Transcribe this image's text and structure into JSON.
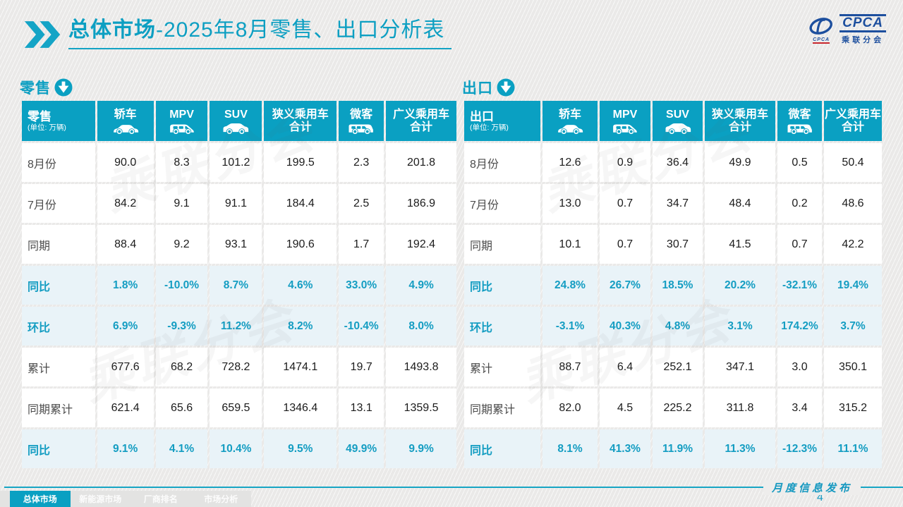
{
  "title": {
    "emphasis": "总体市场",
    "rest": "-2025年8月零售、出口分析表"
  },
  "logo": {
    "brand": "CPCA",
    "brand_cn": "乘联分会",
    "swoosh_sub": "CPCA"
  },
  "watermark": "乘联分会",
  "colors": {
    "accent": "#0aa0c2",
    "accent_text": "#149dc2",
    "highlight_bg": "#e9f3f8"
  },
  "sections": [
    {
      "name": "零售",
      "unit": "(单位: 万辆)",
      "columns": [
        {
          "line1": "轿车",
          "line2": "",
          "icon": "sedan-icon"
        },
        {
          "line1": "MPV",
          "line2": "",
          "icon": "mpv-icon"
        },
        {
          "line1": "SUV",
          "line2": "",
          "icon": "suv-icon"
        },
        {
          "line1": "狭义乘用车",
          "line2": "合计",
          "icon": ""
        },
        {
          "line1": "微客",
          "line2": "",
          "icon": "van-icon"
        },
        {
          "line1": "广义乘用车",
          "line2": "合计",
          "icon": ""
        }
      ],
      "rows": [
        {
          "label": "8月份",
          "highlight": false,
          "values": [
            "90.0",
            "8.3",
            "101.2",
            "199.5",
            "2.3",
            "201.8"
          ]
        },
        {
          "label": "7月份",
          "highlight": false,
          "values": [
            "84.2",
            "9.1",
            "91.1",
            "184.4",
            "2.5",
            "186.9"
          ]
        },
        {
          "label": "同期",
          "highlight": false,
          "values": [
            "88.4",
            "9.2",
            "93.1",
            "190.6",
            "1.7",
            "192.4"
          ]
        },
        {
          "label": "同比",
          "highlight": true,
          "values": [
            "1.8%",
            "-10.0%",
            "8.7%",
            "4.6%",
            "33.0%",
            "4.9%"
          ]
        },
        {
          "label": "环比",
          "highlight": true,
          "values": [
            "6.9%",
            "-9.3%",
            "11.2%",
            "8.2%",
            "-10.4%",
            "8.0%"
          ]
        },
        {
          "label": "累计",
          "highlight": false,
          "values": [
            "677.6",
            "68.2",
            "728.2",
            "1474.1",
            "19.7",
            "1493.8"
          ]
        },
        {
          "label": "同期累计",
          "highlight": false,
          "values": [
            "621.4",
            "65.6",
            "659.5",
            "1346.4",
            "13.1",
            "1359.5"
          ]
        },
        {
          "label": "同比",
          "highlight": true,
          "values": [
            "9.1%",
            "4.1%",
            "10.4%",
            "9.5%",
            "49.9%",
            "9.9%"
          ]
        }
      ]
    },
    {
      "name": "出口",
      "unit": "(单位: 万辆)",
      "columns": [
        {
          "line1": "轿车",
          "line2": "",
          "icon": "sedan-icon"
        },
        {
          "line1": "MPV",
          "line2": "",
          "icon": "mpv-icon"
        },
        {
          "line1": "SUV",
          "line2": "",
          "icon": "suv-icon"
        },
        {
          "line1": "狭义乘用车",
          "line2": "合计",
          "icon": ""
        },
        {
          "line1": "微客",
          "line2": "",
          "icon": "van-icon"
        },
        {
          "line1": "广义乘用车",
          "line2": "合计",
          "icon": ""
        }
      ],
      "rows": [
        {
          "label": "8月份",
          "highlight": false,
          "values": [
            "12.6",
            "0.9",
            "36.4",
            "49.9",
            "0.5",
            "50.4"
          ]
        },
        {
          "label": "7月份",
          "highlight": false,
          "values": [
            "13.0",
            "0.7",
            "34.7",
            "48.4",
            "0.2",
            "48.6"
          ]
        },
        {
          "label": "同期",
          "highlight": false,
          "values": [
            "10.1",
            "0.7",
            "30.7",
            "41.5",
            "0.7",
            "42.2"
          ]
        },
        {
          "label": "同比",
          "highlight": true,
          "values": [
            "24.8%",
            "26.7%",
            "18.5%",
            "20.2%",
            "-32.1%",
            "19.4%"
          ]
        },
        {
          "label": "环比",
          "highlight": true,
          "values": [
            "-3.1%",
            "40.3%",
            "4.8%",
            "3.1%",
            "174.2%",
            "3.7%"
          ]
        },
        {
          "label": "累计",
          "highlight": false,
          "values": [
            "88.7",
            "6.4",
            "252.1",
            "347.1",
            "3.0",
            "350.1"
          ]
        },
        {
          "label": "同期累计",
          "highlight": false,
          "values": [
            "82.0",
            "4.5",
            "225.2",
            "311.8",
            "3.4",
            "315.2"
          ]
        },
        {
          "label": "同比",
          "highlight": true,
          "values": [
            "8.1%",
            "41.3%",
            "11.9%",
            "11.3%",
            "-12.3%",
            "11.1%"
          ]
        }
      ]
    }
  ],
  "footer": {
    "tabs": [
      {
        "label": "总体市场",
        "active": true
      },
      {
        "label": "新能源市场",
        "active": false
      },
      {
        "label": "厂商排名",
        "active": false
      },
      {
        "label": "市场分析",
        "active": false
      }
    ],
    "publish_label": "月度信息发布",
    "page_number": "4"
  }
}
